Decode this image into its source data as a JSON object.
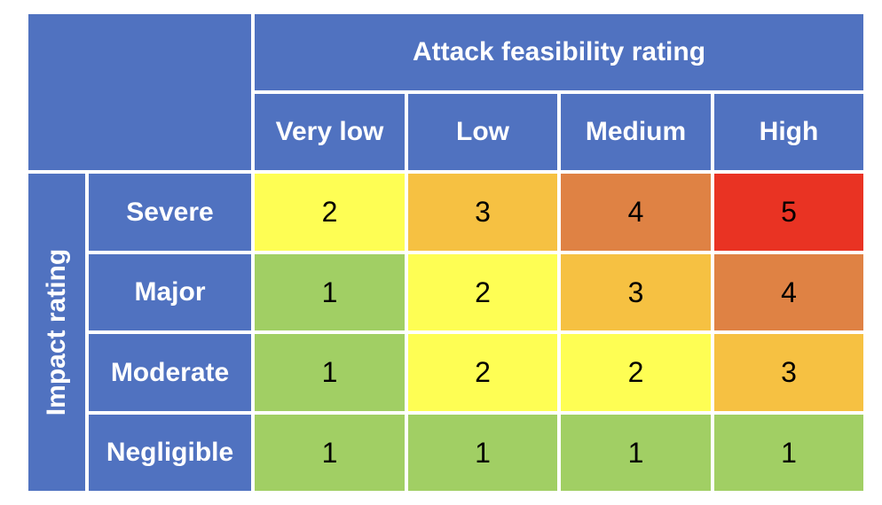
{
  "column_group_label": "Attack feasibility rating",
  "row_group_label": "Impact rating",
  "columns": [
    "Very low",
    "Low",
    "Medium",
    "High"
  ],
  "rows": [
    {
      "label": "Severe",
      "values": [
        2,
        3,
        4,
        5
      ]
    },
    {
      "label": "Major",
      "values": [
        1,
        2,
        3,
        4
      ]
    },
    {
      "label": "Moderate",
      "values": [
        1,
        2,
        2,
        3
      ]
    },
    {
      "label": "Negligible",
      "values": [
        1,
        1,
        1,
        1
      ]
    }
  ],
  "level_colors": {
    "1": "#a1cf64",
    "2": "#fefe54",
    "3": "#f6c142",
    "4": "#df8244",
    "5": "#e93323"
  },
  "header_color": "#5072c0"
}
